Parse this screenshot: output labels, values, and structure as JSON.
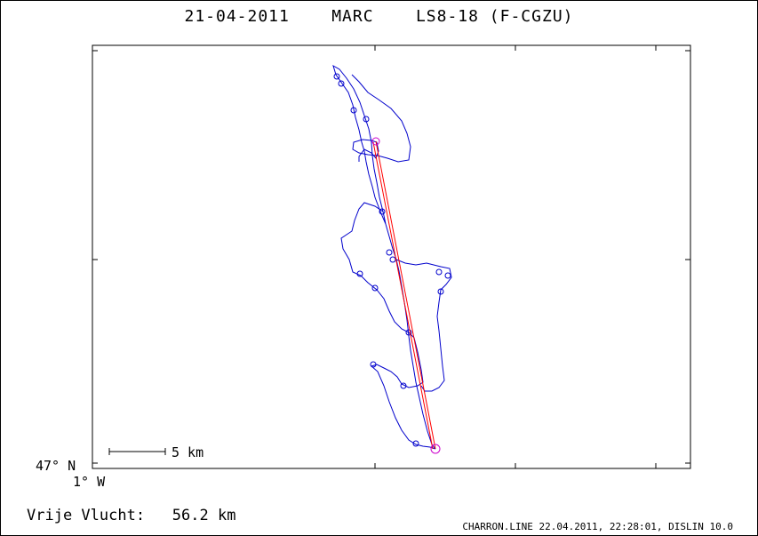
{
  "title": {
    "date": "21-04-2011",
    "pilot": "MARC",
    "glider": "LS8-18 (F-CGZU)"
  },
  "axis": {
    "lat_label": "47° N",
    "lon_label": "1° W"
  },
  "scale_bar": {
    "label": "5 km"
  },
  "footer": {
    "distance_label": "Vrije Vlucht:",
    "distance_value": "56.2 km",
    "software_info": "CHARRON.LINE 22.04.2011, 22:28:01, DISLIN 10.0"
  },
  "colors": {
    "track": "#0000cc",
    "task_line": "#ff0000",
    "turnpoint": "#cc00cc",
    "axes": "#000000"
  }
}
